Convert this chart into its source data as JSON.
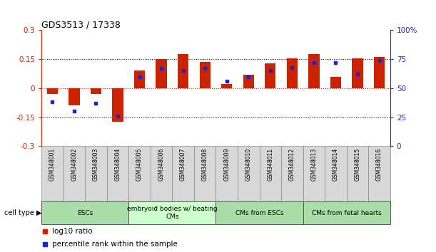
{
  "title": "GDS3513 / 17338",
  "samples": [
    "GSM348001",
    "GSM348002",
    "GSM348003",
    "GSM348004",
    "GSM348005",
    "GSM348006",
    "GSM348007",
    "GSM348008",
    "GSM348009",
    "GSM348010",
    "GSM348011",
    "GSM348012",
    "GSM348013",
    "GSM348014",
    "GSM348015",
    "GSM348016"
  ],
  "log10_ratio": [
    -0.03,
    -0.09,
    -0.03,
    -0.175,
    0.09,
    0.15,
    0.175,
    0.135,
    0.02,
    0.07,
    0.13,
    0.155,
    0.175,
    0.06,
    0.155,
    0.16
  ],
  "percentile_rank": [
    38,
    30,
    37,
    26,
    60,
    67,
    65,
    67,
    56,
    60,
    65,
    68,
    72,
    72,
    62,
    74
  ],
  "ylim_left": [
    -0.3,
    0.3
  ],
  "ylim_right": [
    0,
    100
  ],
  "yticks_left": [
    -0.3,
    -0.15,
    0,
    0.15,
    0.3
  ],
  "yticks_right": [
    0,
    25,
    50,
    75,
    100
  ],
  "bar_color": "#cc2200",
  "dot_color": "#2222cc",
  "hline_color": "#cc2200",
  "dotted_line_color": "#000000",
  "groups": [
    {
      "label": "ESCs",
      "start": 0,
      "end": 3,
      "color": "#aaddaa"
    },
    {
      "label": "embryoid bodies w/ beating\nCMs",
      "start": 4,
      "end": 7,
      "color": "#ccffcc"
    },
    {
      "label": "CMs from ESCs",
      "start": 8,
      "end": 11,
      "color": "#aaddaa"
    },
    {
      "label": "CMs from fetal hearts",
      "start": 12,
      "end": 15,
      "color": "#aaddaa"
    }
  ],
  "legend_ratio_label": "log10 ratio",
  "legend_rank_label": "percentile rank within the sample",
  "cell_type_label": "cell type"
}
